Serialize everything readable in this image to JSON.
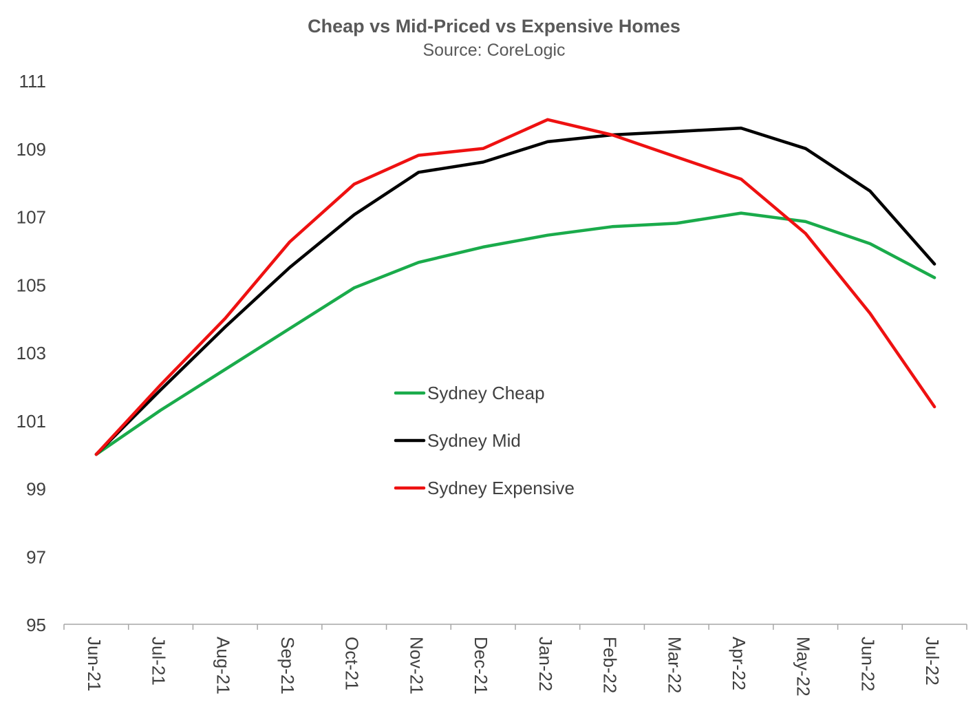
{
  "chart_data": {
    "type": "line",
    "title": "Cheap vs Mid-Priced vs Expensive Homes",
    "subtitle": "Source: CoreLogic",
    "xlabel": "",
    "ylabel": "",
    "ylim": [
      95,
      111
    ],
    "yticks": [
      95,
      97,
      99,
      101,
      103,
      105,
      107,
      109,
      111
    ],
    "categories": [
      "Jun-21",
      "Jul-21",
      "Aug-21",
      "Sep-21",
      "Oct-21",
      "Nov-21",
      "Dec-21",
      "Jan-22",
      "Feb-22",
      "Mar-22",
      "Apr-22",
      "May-22",
      "Jun-22",
      "Jul-22"
    ],
    "grid": false,
    "legend_position": "center",
    "series": [
      {
        "name": "Sydney Cheap",
        "color": "#1aab4b",
        "values": [
          100.0,
          101.3,
          102.5,
          103.7,
          104.9,
          105.65,
          106.1,
          106.45,
          106.7,
          106.8,
          107.1,
          106.85,
          106.2,
          105.2
        ]
      },
      {
        "name": "Sydney Mid",
        "color": "#000000",
        "values": [
          100.0,
          101.9,
          103.75,
          105.5,
          107.05,
          108.3,
          108.6,
          109.2,
          109.4,
          109.5,
          109.6,
          109.0,
          107.75,
          105.6
        ]
      },
      {
        "name": "Sydney Expensive",
        "color": "#ee1111",
        "values": [
          100.0,
          102.05,
          104.0,
          106.25,
          107.95,
          108.8,
          109.0,
          109.85,
          109.4,
          108.75,
          108.1,
          106.5,
          104.15,
          101.4
        ]
      }
    ]
  }
}
